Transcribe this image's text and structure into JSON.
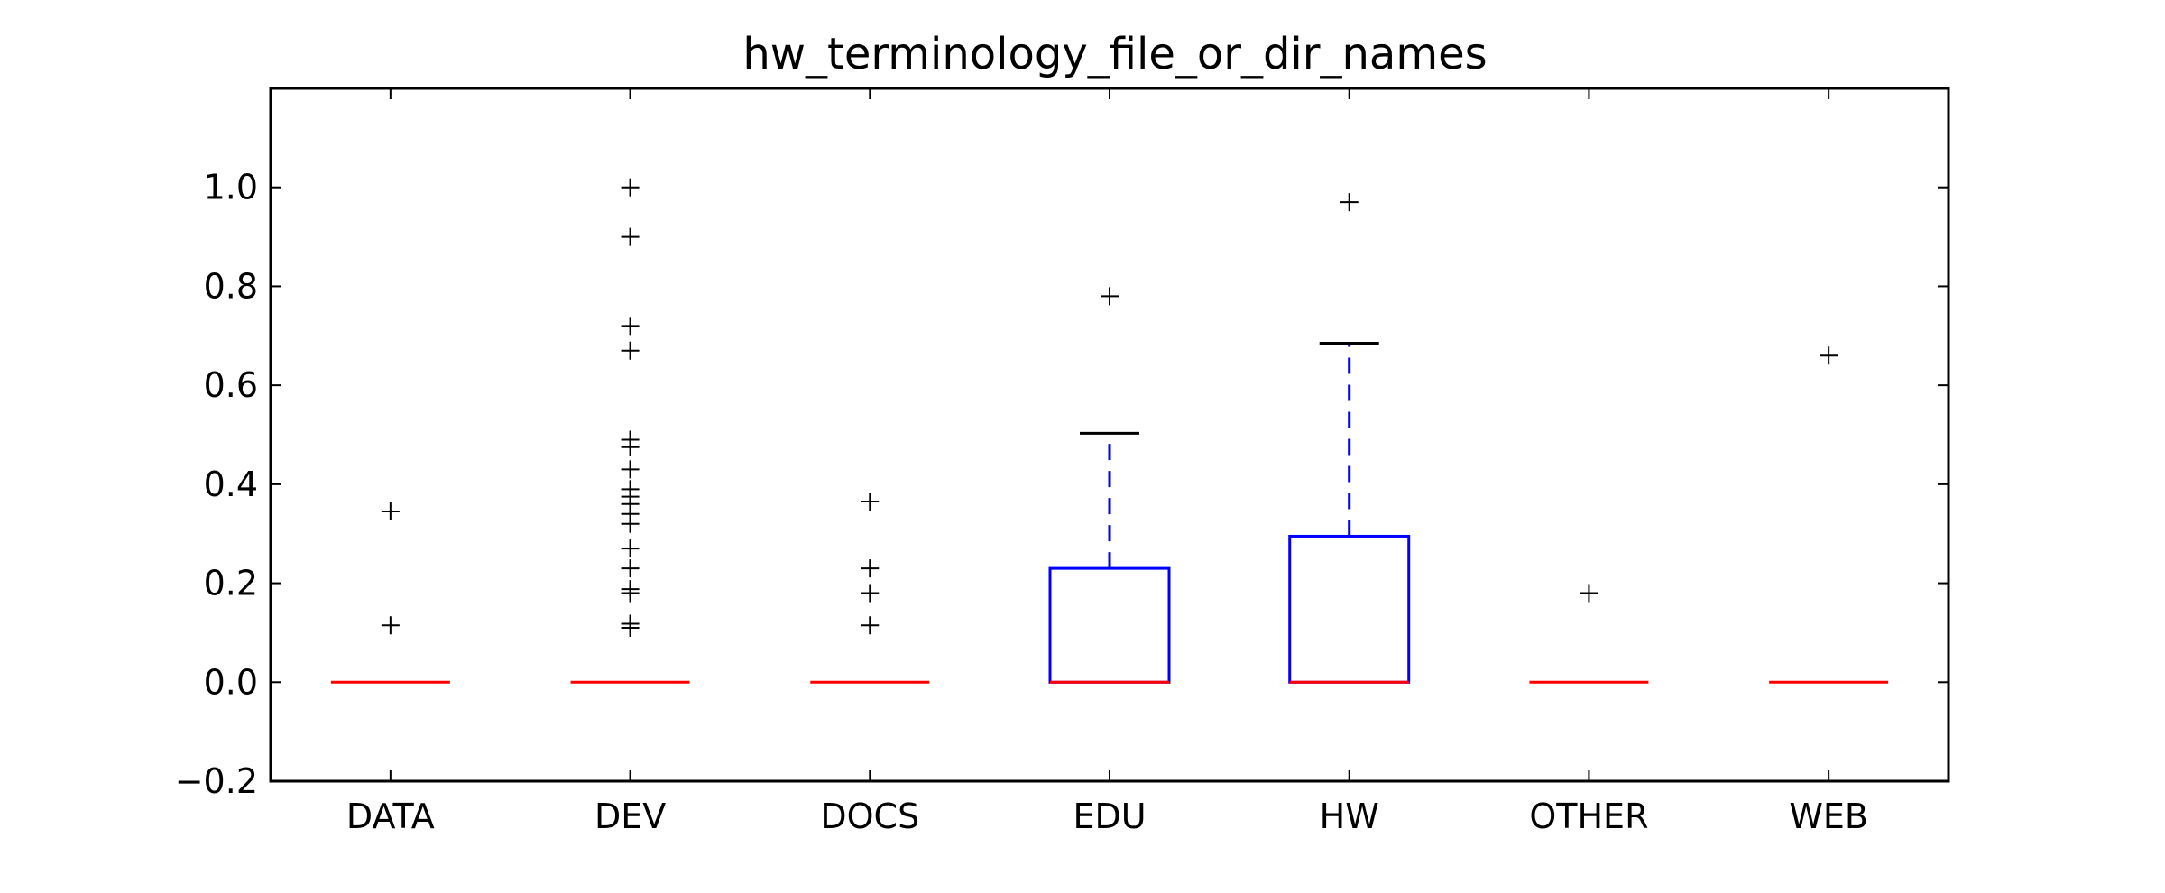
{
  "chart_data": {
    "type": "box",
    "title": "hw_terminology_file_or_dir_names",
    "xlabel": "",
    "ylabel": "",
    "ylim": [
      -0.2,
      1.2
    ],
    "yticks": [
      -0.2,
      0.0,
      0.2,
      0.4,
      0.6,
      0.8,
      1.0
    ],
    "ytick_labels": [
      "−0.2",
      "0.0",
      "0.2",
      "0.4",
      "0.6",
      "0.8",
      "1.0"
    ],
    "categories": [
      "DATA",
      "DEV",
      "DOCS",
      "EDU",
      "HW",
      "OTHER",
      "WEB"
    ],
    "boxes": [
      {
        "name": "DATA",
        "q1": 0.0,
        "median": 0.0,
        "q3": 0.0,
        "whisker_low": 0.0,
        "whisker_high": 0.0,
        "outliers": [
          0.115,
          0.345
        ]
      },
      {
        "name": "DEV",
        "q1": 0.0,
        "median": 0.0,
        "q3": 0.0,
        "whisker_low": 0.0,
        "whisker_high": 0.0,
        "outliers": [
          0.11,
          0.118,
          0.18,
          0.188,
          0.23,
          0.27,
          0.32,
          0.34,
          0.36,
          0.375,
          0.39,
          0.43,
          0.475,
          0.49,
          0.67,
          0.72,
          0.9,
          1.0
        ]
      },
      {
        "name": "DOCS",
        "q1": 0.0,
        "median": 0.0,
        "q3": 0.0,
        "whisker_low": 0.0,
        "whisker_high": 0.0,
        "outliers": [
          0.115,
          0.18,
          0.23,
          0.365
        ]
      },
      {
        "name": "EDU",
        "q1": 0.0,
        "median": 0.0,
        "q3": 0.23,
        "whisker_low": 0.0,
        "whisker_high": 0.503,
        "outliers": [
          0.78
        ]
      },
      {
        "name": "HW",
        "q1": 0.0,
        "median": 0.0,
        "q3": 0.295,
        "whisker_low": 0.0,
        "whisker_high": 0.685,
        "outliers": [
          0.97
        ]
      },
      {
        "name": "OTHER",
        "q1": 0.0,
        "median": 0.0,
        "q3": 0.0,
        "whisker_low": 0.0,
        "whisker_high": 0.0,
        "outliers": [
          0.18
        ]
      },
      {
        "name": "WEB",
        "q1": 0.0,
        "median": 0.0,
        "q3": 0.0,
        "whisker_low": 0.0,
        "whisker_high": 0.0,
        "outliers": [
          0.66
        ]
      }
    ],
    "colors": {
      "box": "#0000ff",
      "median": "#ff0000",
      "whisker": "#0000ff",
      "cap": "#000000",
      "outlier": "#000000",
      "axes": "#000000"
    },
    "grid": false,
    "legend": "none"
  }
}
